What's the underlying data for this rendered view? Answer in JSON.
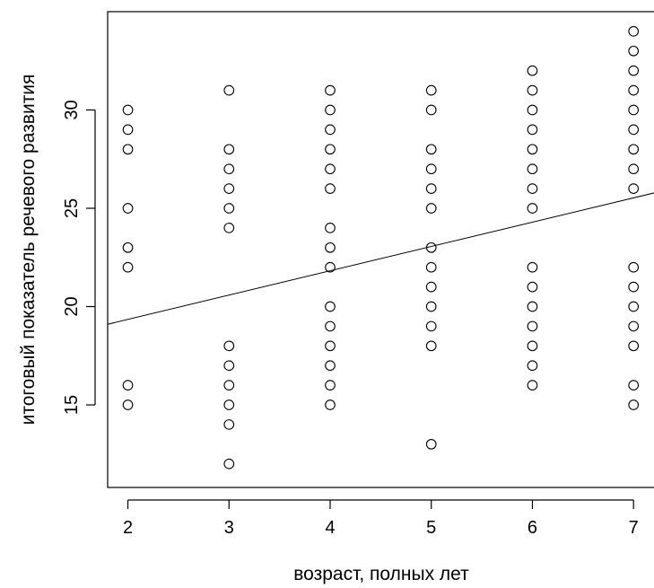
{
  "chart_data": {
    "type": "scatter",
    "title": "",
    "xlabel": "возраст, полных лет",
    "ylabel": "итоговый показатель речевого развития",
    "xlim": [
      1.8,
      7.3
    ],
    "ylim": [
      10.8,
      35.0
    ],
    "xticks": [
      2,
      3,
      4,
      5,
      6,
      7
    ],
    "yticks": [
      15,
      20,
      25,
      30
    ],
    "grid": false,
    "legend": "none",
    "point_color": "#000000",
    "points": [
      {
        "x": 2,
        "y": 30
      },
      {
        "x": 2,
        "y": 29
      },
      {
        "x": 2,
        "y": 28
      },
      {
        "x": 2,
        "y": 25
      },
      {
        "x": 2,
        "y": 23
      },
      {
        "x": 2,
        "y": 22
      },
      {
        "x": 2,
        "y": 16
      },
      {
        "x": 2,
        "y": 15
      },
      {
        "x": 3,
        "y": 31
      },
      {
        "x": 3,
        "y": 28
      },
      {
        "x": 3,
        "y": 27
      },
      {
        "x": 3,
        "y": 26
      },
      {
        "x": 3,
        "y": 25
      },
      {
        "x": 3,
        "y": 24
      },
      {
        "x": 3,
        "y": 18
      },
      {
        "x": 3,
        "y": 17
      },
      {
        "x": 3,
        "y": 16
      },
      {
        "x": 3,
        "y": 15
      },
      {
        "x": 3,
        "y": 14
      },
      {
        "x": 3,
        "y": 12
      },
      {
        "x": 4,
        "y": 31
      },
      {
        "x": 4,
        "y": 30
      },
      {
        "x": 4,
        "y": 29
      },
      {
        "x": 4,
        "y": 28
      },
      {
        "x": 4,
        "y": 27
      },
      {
        "x": 4,
        "y": 26
      },
      {
        "x": 4,
        "y": 24
      },
      {
        "x": 4,
        "y": 23
      },
      {
        "x": 4,
        "y": 22
      },
      {
        "x": 4,
        "y": 20
      },
      {
        "x": 4,
        "y": 19
      },
      {
        "x": 4,
        "y": 18
      },
      {
        "x": 4,
        "y": 17
      },
      {
        "x": 4,
        "y": 16
      },
      {
        "x": 4,
        "y": 15
      },
      {
        "x": 5,
        "y": 31
      },
      {
        "x": 5,
        "y": 30
      },
      {
        "x": 5,
        "y": 28
      },
      {
        "x": 5,
        "y": 27
      },
      {
        "x": 5,
        "y": 26
      },
      {
        "x": 5,
        "y": 25
      },
      {
        "x": 5,
        "y": 23
      },
      {
        "x": 5,
        "y": 22
      },
      {
        "x": 5,
        "y": 21
      },
      {
        "x": 5,
        "y": 20
      },
      {
        "x": 5,
        "y": 19
      },
      {
        "x": 5,
        "y": 18
      },
      {
        "x": 5,
        "y": 13
      },
      {
        "x": 6,
        "y": 32
      },
      {
        "x": 6,
        "y": 31
      },
      {
        "x": 6,
        "y": 30
      },
      {
        "x": 6,
        "y": 29
      },
      {
        "x": 6,
        "y": 28
      },
      {
        "x": 6,
        "y": 27
      },
      {
        "x": 6,
        "y": 26
      },
      {
        "x": 6,
        "y": 25
      },
      {
        "x": 6,
        "y": 22
      },
      {
        "x": 6,
        "y": 21
      },
      {
        "x": 6,
        "y": 20
      },
      {
        "x": 6,
        "y": 19
      },
      {
        "x": 6,
        "y": 18
      },
      {
        "x": 6,
        "y": 17
      },
      {
        "x": 6,
        "y": 16
      },
      {
        "x": 7,
        "y": 34
      },
      {
        "x": 7,
        "y": 33
      },
      {
        "x": 7,
        "y": 32
      },
      {
        "x": 7,
        "y": 31
      },
      {
        "x": 7,
        "y": 30
      },
      {
        "x": 7,
        "y": 29
      },
      {
        "x": 7,
        "y": 28
      },
      {
        "x": 7,
        "y": 27
      },
      {
        "x": 7,
        "y": 26
      },
      {
        "x": 7,
        "y": 22
      },
      {
        "x": 7,
        "y": 21
      },
      {
        "x": 7,
        "y": 20
      },
      {
        "x": 7,
        "y": 19
      },
      {
        "x": 7,
        "y": 18
      },
      {
        "x": 7,
        "y": 16
      },
      {
        "x": 7,
        "y": 15
      }
    ],
    "trend_line": {
      "x": [
        1.8,
        7.3
      ],
      "y": [
        19.1,
        25.9
      ]
    }
  }
}
